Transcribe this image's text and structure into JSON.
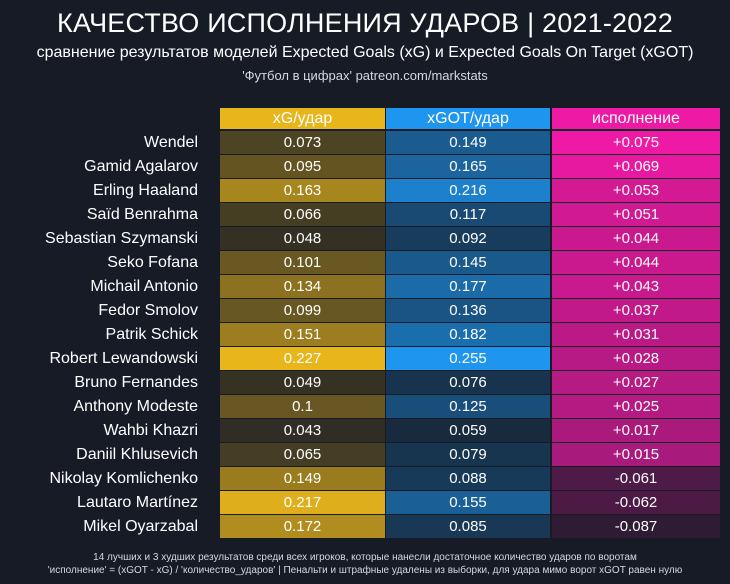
{
  "header": {
    "title": "КАЧЕСТВО ИСПОЛНЕНИЯ УДАРОВ | 2021-2022",
    "subtitle": "сравнение результатов моделей Expected Goals (xG) и Expected Goals On Target (xGOT)",
    "source": "'Футбол в цифрах' patreon.com/markstats"
  },
  "colors": {
    "background": "#161b26",
    "xg": "#e8b51b",
    "xgot": "#1e96f0",
    "exec": "#ee19a4"
  },
  "chart_data": {
    "type": "table",
    "title": "КАЧЕСТВО ИСПОЛНЕНИЯ УДАРОВ | 2021-2022",
    "columns": [
      "xG/удар",
      "xGOT/удар",
      "исполнение"
    ],
    "rows": [
      {
        "player": "Wendel",
        "xg": "0.073",
        "xgot": "0.149",
        "exec": "+0.075"
      },
      {
        "player": "Gamid Agalarov",
        "xg": "0.095",
        "xgot": "0.165",
        "exec": "+0.069"
      },
      {
        "player": "Erling Haaland",
        "xg": "0.163",
        "xgot": "0.216",
        "exec": "+0.053"
      },
      {
        "player": "Saïd Benrahma",
        "xg": "0.066",
        "xgot": "0.117",
        "exec": "+0.051"
      },
      {
        "player": "Sebastian Szymanski",
        "xg": "0.048",
        "xgot": "0.092",
        "exec": "+0.044"
      },
      {
        "player": "Seko Fofana",
        "xg": "0.101",
        "xgot": "0.145",
        "exec": "+0.044"
      },
      {
        "player": "Michail Antonio",
        "xg": "0.134",
        "xgot": "0.177",
        "exec": "+0.043"
      },
      {
        "player": "Fedor Smolov",
        "xg": "0.099",
        "xgot": "0.136",
        "exec": "+0.037"
      },
      {
        "player": "Patrik Schick",
        "xg": "0.151",
        "xgot": "0.182",
        "exec": "+0.031"
      },
      {
        "player": "Robert Lewandowski",
        "xg": "0.227",
        "xgot": "0.255",
        "exec": "+0.028"
      },
      {
        "player": "Bruno Fernandes",
        "xg": "0.049",
        "xgot": "0.076",
        "exec": "+0.027"
      },
      {
        "player": "Anthony Modeste",
        "xg": "0.1",
        "xgot": "0.125",
        "exec": "+0.025"
      },
      {
        "player": "Wahbi Khazri",
        "xg": "0.043",
        "xgot": "0.059",
        "exec": "+0.017"
      },
      {
        "player": "Daniil Khlusevich",
        "xg": "0.065",
        "xgot": "0.079",
        "exec": "+0.015"
      },
      {
        "player": "Nikolay Komlichenko",
        "xg": "0.149",
        "xgot": "0.088",
        "exec": "-0.061"
      },
      {
        "player": "Lautaro Martínez",
        "xg": "0.217",
        "xgot": "0.155",
        "exec": "-0.062"
      },
      {
        "player": "Mikel Oyarzabal",
        "xg": "0.172",
        "xgot": "0.085",
        "exec": "-0.087"
      }
    ]
  },
  "footer": {
    "line1": "14 лучших и 3 худших результатов среди всех игроков, которые нанесли достаточное количество ударов по воротам",
    "line2": "'исполнение' = (xGOT - xG) / 'количество_ударов' | Пенальти и штрафные удалены из выборки, для удара мимо ворот xGOT равен нулю"
  }
}
